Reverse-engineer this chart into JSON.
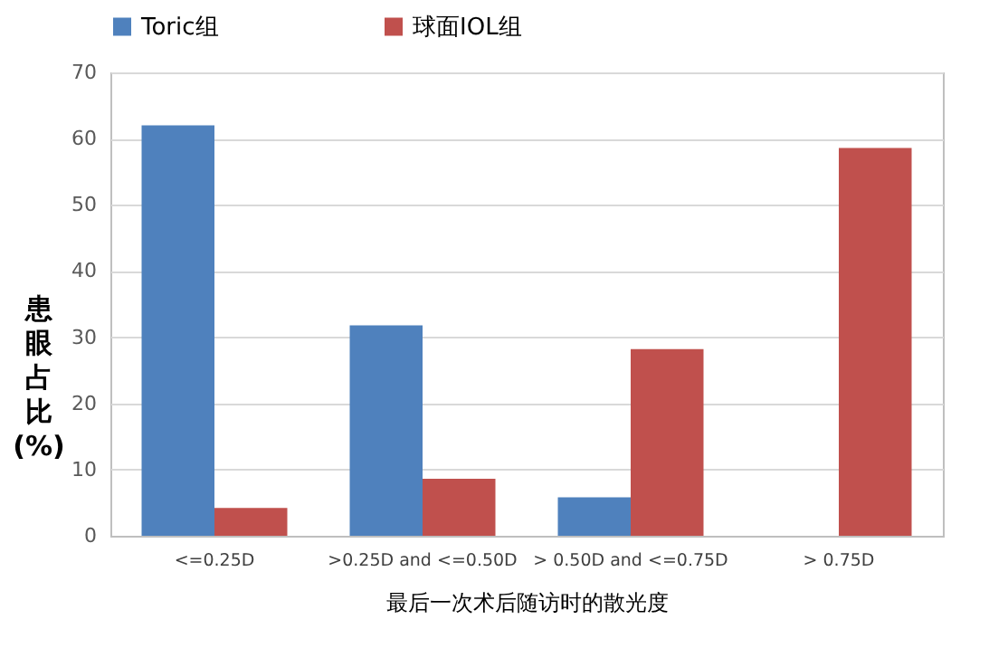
{
  "chart_data": {
    "type": "bar",
    "xlabel": "最后一次术后随访时的散光度",
    "ylabel": "患眼占比(%)",
    "categories": [
      "<=0.25D",
      ">0.25D and <=0.50D",
      "> 0.50D and <=0.75D",
      "> 0.75D"
    ],
    "series": [
      {
        "name": "Toric组",
        "color": "#4f81bd",
        "values": [
          62,
          31.8,
          5.8,
          0
        ]
      },
      {
        "name": "球面IOL组",
        "color": "#c0504d",
        "values": [
          4.2,
          8.6,
          28.2,
          58.6
        ]
      }
    ],
    "ylim": [
      0,
      70
    ],
    "yticks": [
      0,
      10,
      20,
      30,
      40,
      50,
      60,
      70
    ],
    "grid": "y",
    "legend": "top"
  }
}
